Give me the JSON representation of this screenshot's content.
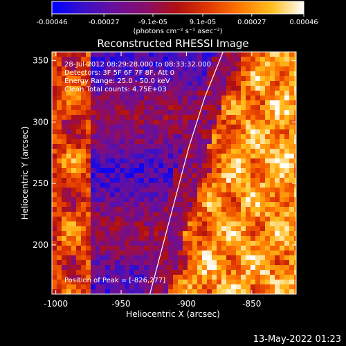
{
  "colorbar": {
    "tick_labels": [
      "-0.00046",
      "-0.00027",
      "-9.1e-05",
      "9.1e-05",
      "0.00027",
      "0.00046"
    ],
    "tick_values": [
      -0.00046,
      -0.00027,
      -9.1e-05,
      9.1e-05,
      0.00027,
      0.00046
    ],
    "range": [
      -0.00046,
      0.00046
    ],
    "unit_label": "(photons cm⁻² s⁻¹ asec⁻²)",
    "colormap": [
      "#0000ff",
      "#3a10c8",
      "#6a0f9a",
      "#8a0d6a",
      "#b01010",
      "#e23a00",
      "#ff7a00",
      "#ffc020",
      "#ffffff"
    ]
  },
  "annotations": {
    "time_range": "28-Jul-2012 08:29:28.000 to 08:33:32.000",
    "detectors": "Detectors: 3F 5F 6F 7F 8F, Att 0",
    "energy": "Energy Range: 25.0 - 50.0 keV",
    "clean": "Clean     Total counts: 4.75E+03",
    "peak": "Position of Peak = [-826,277]"
  },
  "footer": {
    "timestamp": "13-May-2022 01:23"
  },
  "chart_data": {
    "type": "heatmap",
    "title": "Reconstructed RHESSI Image",
    "xlabel": "Heliocentric X (arcsec)",
    "ylabel": "Heliocentric Y (arcsec)",
    "xlim": [
      -1003,
      -816
    ],
    "ylim": [
      160,
      357
    ],
    "x_ticks": [
      -1000,
      -950,
      -900,
      -850
    ],
    "x_tick_labels": [
      "-1000",
      "-950",
      "-900",
      "-850"
    ],
    "y_ticks": [
      200,
      250,
      300,
      350
    ],
    "y_tick_labels": [
      "200",
      "250",
      "300",
      "350"
    ],
    "peak_position": [
      -826,
      277
    ],
    "limb_curve": [
      [
        -928,
        160
      ],
      [
        -918,
        200
      ],
      [
        -908,
        240
      ],
      [
        -898,
        280
      ],
      [
        -886,
        320
      ],
      [
        -872,
        357
      ]
    ]
  }
}
